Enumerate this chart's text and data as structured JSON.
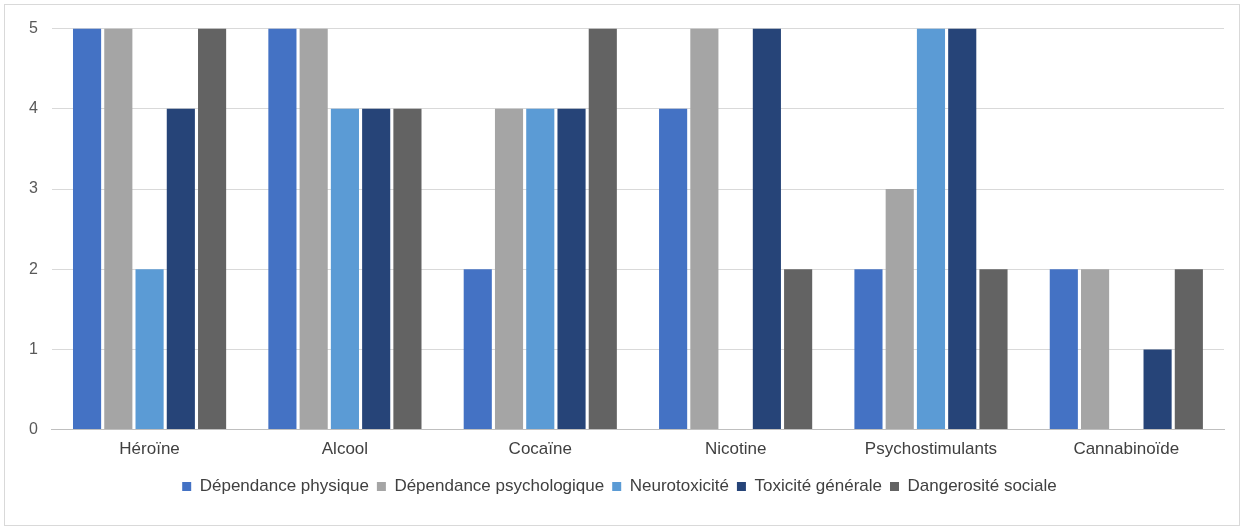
{
  "chart_data": {
    "type": "bar",
    "categories": [
      "Héroïne",
      "Alcool",
      "Cocaïne",
      "Nicotine",
      "Psychostimulants",
      "Cannabinoïde"
    ],
    "series": [
      {
        "name": "Dépendance physique",
        "color": "#4472c4",
        "values": [
          5,
          5,
          2,
          4,
          2,
          2
        ]
      },
      {
        "name": "Dépendance psychologique",
        "color": "#a5a5a5",
        "values": [
          5,
          5,
          4,
          5,
          3,
          2
        ]
      },
      {
        "name": "Neurotoxicité",
        "color": "#5b9bd5",
        "values": [
          2,
          4,
          4,
          0,
          5,
          0
        ]
      },
      {
        "name": "Toxicité générale",
        "color": "#264478",
        "values": [
          4,
          4,
          4,
          5,
          5,
          1
        ]
      },
      {
        "name": "Dangerosité sociale",
        "color": "#636363",
        "values": [
          5,
          4,
          5,
          2,
          2,
          2
        ]
      }
    ],
    "ylim": [
      0,
      5
    ],
    "yticks": [
      0,
      1,
      2,
      3,
      4,
      5
    ],
    "grid": "y",
    "legend": "bottom"
  }
}
